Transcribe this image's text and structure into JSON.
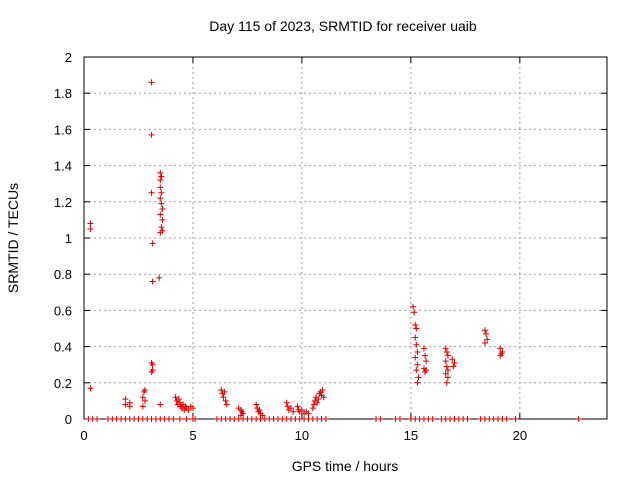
{
  "chart_data": {
    "type": "scatter",
    "title": "Day 115 of 2023, SRMTID for receiver uaib",
    "xlabel": "GPS time / hours",
    "ylabel": "SRMTID / TECUs",
    "xlim": [
      0,
      24
    ],
    "ylim": [
      0,
      2
    ],
    "xticks": [
      0,
      5,
      10,
      15,
      20
    ],
    "yticks": [
      0,
      0.2,
      0.4,
      0.6,
      0.8,
      1,
      1.2,
      1.4,
      1.6,
      1.8,
      2
    ],
    "grid": true,
    "marker": "+",
    "color": "#e00000",
    "series": [
      {
        "name": "SRMTID",
        "points": [
          [
            0.3,
            1.08
          ],
          [
            0.3,
            1.05
          ],
          [
            0.3,
            0.17
          ],
          [
            1.9,
            0.11
          ],
          [
            1.9,
            0.08
          ],
          [
            2.1,
            0.09
          ],
          [
            2.1,
            0.07
          ],
          [
            2.7,
            0.12
          ],
          [
            2.75,
            0.15
          ],
          [
            2.8,
            0.1
          ],
          [
            2.7,
            0.07
          ],
          [
            2.8,
            0.16
          ],
          [
            3.1,
            1.86
          ],
          [
            3.1,
            1.57
          ],
          [
            3.1,
            1.25
          ],
          [
            3.15,
            0.97
          ],
          [
            3.15,
            0.76
          ],
          [
            3.1,
            0.31
          ],
          [
            3.15,
            0.3
          ],
          [
            3.1,
            0.26
          ],
          [
            3.15,
            0.27
          ],
          [
            3.5,
            1.36
          ],
          [
            3.55,
            1.34
          ],
          [
            3.5,
            1.32
          ],
          [
            3.5,
            1.28
          ],
          [
            3.55,
            1.25
          ],
          [
            3.5,
            1.22
          ],
          [
            3.55,
            1.19
          ],
          [
            3.6,
            1.16
          ],
          [
            3.5,
            1.13
          ],
          [
            3.6,
            1.1
          ],
          [
            3.55,
            1.06
          ],
          [
            3.6,
            1.04
          ],
          [
            3.5,
            1.03
          ],
          [
            3.45,
            0.78
          ],
          [
            3.5,
            0.08
          ],
          [
            4.2,
            0.12
          ],
          [
            4.25,
            0.1
          ],
          [
            4.3,
            0.08
          ],
          [
            4.35,
            0.11
          ],
          [
            4.4,
            0.09
          ],
          [
            4.45,
            0.07
          ],
          [
            4.5,
            0.06
          ],
          [
            4.55,
            0.08
          ],
          [
            4.6,
            0.05
          ],
          [
            4.65,
            0.07
          ],
          [
            4.7,
            0.06
          ],
          [
            4.8,
            0.05
          ],
          [
            4.9,
            0.07
          ],
          [
            5.0,
            0.06
          ],
          [
            6.3,
            0.16
          ],
          [
            6.35,
            0.14
          ],
          [
            6.4,
            0.12
          ],
          [
            6.45,
            0.15
          ],
          [
            6.5,
            0.1
          ],
          [
            6.55,
            0.08
          ],
          [
            7.1,
            0.06
          ],
          [
            7.2,
            0.05
          ],
          [
            7.25,
            0.04
          ],
          [
            7.3,
            0.03
          ],
          [
            7.2,
            0.02
          ],
          [
            7.9,
            0.08
          ],
          [
            7.95,
            0.06
          ],
          [
            8.0,
            0.04
          ],
          [
            8.05,
            0.05
          ],
          [
            8.1,
            0.03
          ],
          [
            8.2,
            0.02
          ],
          [
            9.3,
            0.09
          ],
          [
            9.35,
            0.07
          ],
          [
            9.4,
            0.05
          ],
          [
            9.5,
            0.06
          ],
          [
            9.6,
            0.04
          ],
          [
            9.8,
            0.07
          ],
          [
            9.85,
            0.05
          ],
          [
            9.9,
            0.04
          ],
          [
            10.0,
            0.05
          ],
          [
            10.1,
            0.03
          ],
          [
            10.2,
            0.04
          ],
          [
            10.3,
            0.03
          ],
          [
            10.5,
            0.06
          ],
          [
            10.55,
            0.08
          ],
          [
            10.6,
            0.1
          ],
          [
            10.65,
            0.12
          ],
          [
            10.7,
            0.09
          ],
          [
            10.75,
            0.11
          ],
          [
            10.8,
            0.14
          ],
          [
            10.85,
            0.15
          ],
          [
            10.9,
            0.13
          ],
          [
            10.95,
            0.16
          ],
          [
            11.0,
            0.12
          ],
          [
            15.1,
            0.62
          ],
          [
            15.15,
            0.59
          ],
          [
            15.2,
            0.52
          ],
          [
            15.25,
            0.5
          ],
          [
            15.2,
            0.45
          ],
          [
            15.25,
            0.41
          ],
          [
            15.3,
            0.37
          ],
          [
            15.2,
            0.34
          ],
          [
            15.3,
            0.3
          ],
          [
            15.25,
            0.27
          ],
          [
            15.35,
            0.23
          ],
          [
            15.3,
            0.2
          ],
          [
            15.6,
            0.39
          ],
          [
            15.65,
            0.35
          ],
          [
            15.7,
            0.32
          ],
          [
            15.6,
            0.28
          ],
          [
            15.65,
            0.26
          ],
          [
            15.7,
            0.27
          ],
          [
            16.6,
            0.39
          ],
          [
            16.65,
            0.37
          ],
          [
            16.7,
            0.35
          ],
          [
            16.6,
            0.32
          ],
          [
            16.65,
            0.29
          ],
          [
            16.7,
            0.27
          ],
          [
            16.6,
            0.25
          ],
          [
            16.7,
            0.23
          ],
          [
            16.65,
            0.2
          ],
          [
            16.9,
            0.33
          ],
          [
            17.0,
            0.31
          ],
          [
            16.95,
            0.29
          ],
          [
            18.4,
            0.49
          ],
          [
            18.45,
            0.47
          ],
          [
            18.5,
            0.44
          ],
          [
            18.4,
            0.42
          ],
          [
            19.1,
            0.39
          ],
          [
            19.15,
            0.36
          ],
          [
            19.1,
            0.35
          ],
          [
            19.2,
            0.37
          ],
          [
            0.2,
            0
          ],
          [
            0.4,
            0
          ],
          [
            0.6,
            0
          ],
          [
            1.1,
            0
          ],
          [
            1.3,
            0
          ],
          [
            1.5,
            0
          ],
          [
            1.7,
            0
          ],
          [
            1.9,
            0
          ],
          [
            2.1,
            0
          ],
          [
            2.3,
            0
          ],
          [
            2.5,
            0
          ],
          [
            2.7,
            0
          ],
          [
            2.9,
            0
          ],
          [
            3.1,
            0
          ],
          [
            3.3,
            0
          ],
          [
            3.5,
            0
          ],
          [
            3.7,
            0
          ],
          [
            3.9,
            0
          ],
          [
            4.1,
            0
          ],
          [
            4.4,
            0
          ],
          [
            4.7,
            0
          ],
          [
            5.0,
            0
          ],
          [
            5.1,
            0
          ],
          [
            6.1,
            0
          ],
          [
            6.3,
            0
          ],
          [
            6.5,
            0
          ],
          [
            6.7,
            0
          ],
          [
            6.9,
            0
          ],
          [
            7.1,
            0
          ],
          [
            7.3,
            0
          ],
          [
            7.5,
            0
          ],
          [
            7.7,
            0
          ],
          [
            7.9,
            0
          ],
          [
            8.1,
            0
          ],
          [
            8.3,
            0
          ],
          [
            8.5,
            0
          ],
          [
            8.7,
            0
          ],
          [
            8.9,
            0
          ],
          [
            9.1,
            0
          ],
          [
            9.3,
            0
          ],
          [
            9.5,
            0
          ],
          [
            9.7,
            0
          ],
          [
            9.9,
            0
          ],
          [
            10.1,
            0
          ],
          [
            10.3,
            0
          ],
          [
            10.5,
            0
          ],
          [
            10.7,
            0
          ],
          [
            10.9,
            0
          ],
          [
            11.1,
            0
          ],
          [
            13.4,
            0
          ],
          [
            13.6,
            0
          ],
          [
            14.3,
            0
          ],
          [
            14.5,
            0
          ],
          [
            15.0,
            0
          ],
          [
            15.2,
            0
          ],
          [
            15.4,
            0
          ],
          [
            15.6,
            0
          ],
          [
            15.8,
            0
          ],
          [
            16.0,
            0
          ],
          [
            16.4,
            0
          ],
          [
            16.6,
            0
          ],
          [
            16.8,
            0
          ],
          [
            17.0,
            0
          ],
          [
            17.2,
            0
          ],
          [
            17.4,
            0
          ],
          [
            17.6,
            0
          ],
          [
            18.2,
            0
          ],
          [
            18.4,
            0
          ],
          [
            18.6,
            0
          ],
          [
            18.8,
            0
          ],
          [
            19.0,
            0
          ],
          [
            19.2,
            0
          ],
          [
            19.4,
            0
          ],
          [
            19.8,
            0
          ],
          [
            22.7,
            0
          ]
        ]
      }
    ]
  }
}
